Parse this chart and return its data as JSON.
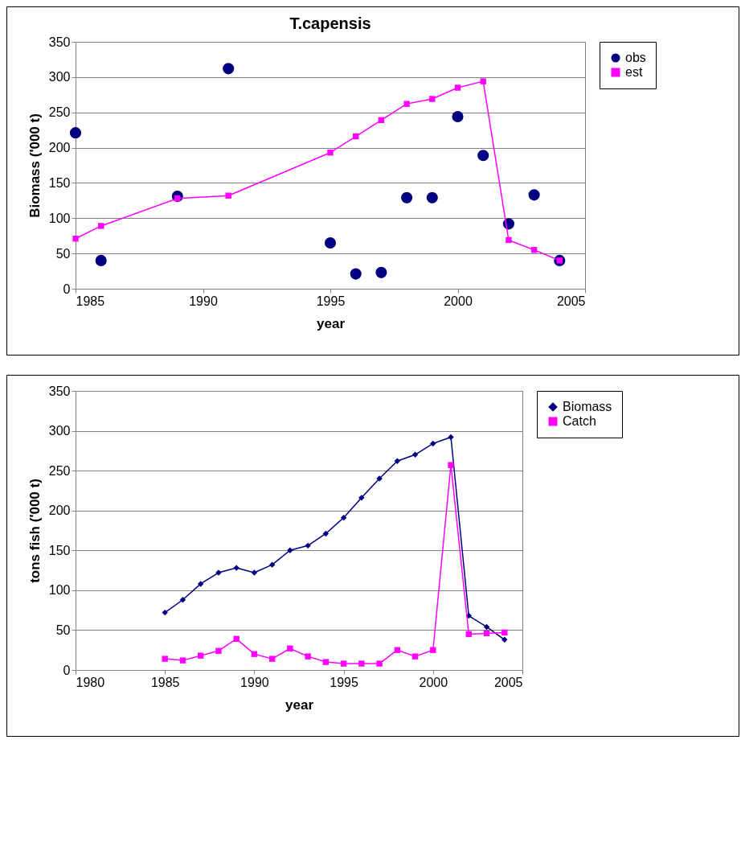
{
  "chart_data": [
    {
      "type": "line",
      "title": "T.capensis",
      "xlabel": "year",
      "ylabel": "Biomass ('000 t)",
      "xlim": [
        1985,
        2005
      ],
      "xticks": [
        1985,
        1990,
        1995,
        2000,
        2005
      ],
      "ylim": [
        0,
        350
      ],
      "yticks": [
        0,
        50,
        100,
        150,
        200,
        250,
        300,
        350
      ],
      "grid": "y",
      "legend": "right",
      "series": [
        {
          "name": "obs",
          "type": "scatter",
          "marker": "circle",
          "color": "#000080",
          "x": [
            1985,
            1986,
            1989,
            1991,
            1995,
            1996,
            1997,
            1998,
            1999,
            2000,
            2001,
            2002,
            2003,
            2004
          ],
          "values": [
            221,
            40,
            131,
            312,
            65,
            21,
            23,
            129,
            129,
            244,
            189,
            92,
            133,
            40
          ]
        },
        {
          "name": "est",
          "marker": "square",
          "color": "#ff00ff",
          "x": [
            1985,
            1986,
            1989,
            1991,
            1995,
            1996,
            1997,
            1998,
            1999,
            2000,
            2001,
            2002,
            2003,
            2004
          ],
          "values": [
            71,
            89,
            128,
            132,
            193,
            216,
            239,
            262,
            269,
            285,
            294,
            69,
            55,
            40
          ]
        }
      ]
    },
    {
      "type": "line",
      "xlabel": "year",
      "ylabel": "tons fish ('000 t)",
      "xlim": [
        1980,
        2005
      ],
      "xticks": [
        1980,
        1985,
        1990,
        1995,
        2000,
        2005
      ],
      "ylim": [
        0,
        350
      ],
      "yticks": [
        0,
        50,
        100,
        150,
        200,
        250,
        300,
        350
      ],
      "grid": "y",
      "legend": "right",
      "series": [
        {
          "name": "Biomass",
          "marker": "diamond",
          "color": "#000080",
          "x": [
            1985,
            1986,
            1987,
            1988,
            1989,
            1990,
            1991,
            1992,
            1993,
            1994,
            1995,
            1996,
            1997,
            1998,
            1999,
            2000,
            2001,
            2002,
            2003,
            2004
          ],
          "values": [
            72,
            88,
            108,
            122,
            128,
            122,
            132,
            150,
            156,
            171,
            191,
            216,
            240,
            262,
            270,
            284,
            292,
            68,
            54,
            38
          ]
        },
        {
          "name": "Catch",
          "marker": "square",
          "color": "#ff00ff",
          "x": [
            1985,
            1986,
            1987,
            1988,
            1989,
            1990,
            1991,
            1992,
            1993,
            1994,
            1995,
            1996,
            1997,
            1998,
            1999,
            2000,
            2001,
            2002,
            2003,
            2004
          ],
          "values": [
            14,
            12,
            18,
            24,
            39,
            20,
            14,
            27,
            17,
            10,
            8,
            8,
            8,
            25,
            17,
            25,
            257,
            45,
            46,
            47
          ]
        }
      ]
    }
  ]
}
